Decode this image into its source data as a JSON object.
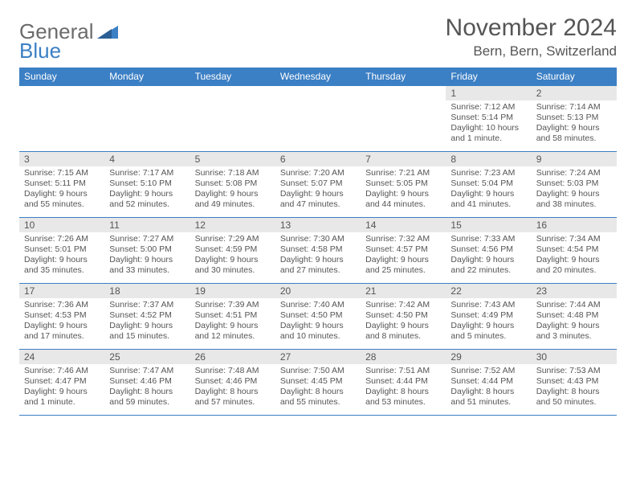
{
  "brand": {
    "part1": "General",
    "part2": "Blue"
  },
  "title": "November 2024",
  "location": "Bern, Bern, Switzerland",
  "colors": {
    "accent": "#3b7fc4",
    "header_bg": "#3b7fc4",
    "header_text": "#ffffff",
    "daynum_bg": "#e8e8e8",
    "text": "#555555",
    "border": "#3b7fc4",
    "background": "#ffffff"
  },
  "layout": {
    "type": "calendar",
    "columns": 7,
    "rows": 5,
    "weekday_fontsize": 12,
    "daynum_fontsize": 12,
    "body_fontsize": 10.5,
    "title_fontsize": 30,
    "location_fontsize": 17
  },
  "weekdays": [
    "Sunday",
    "Monday",
    "Tuesday",
    "Wednesday",
    "Thursday",
    "Friday",
    "Saturday"
  ],
  "grid": [
    [
      {
        "empty": true
      },
      {
        "empty": true
      },
      {
        "empty": true
      },
      {
        "empty": true
      },
      {
        "empty": true
      },
      {
        "num": "1",
        "sunrise": "Sunrise: 7:12 AM",
        "sunset": "Sunset: 5:14 PM",
        "day1": "Daylight: 10 hours",
        "day2": "and 1 minute."
      },
      {
        "num": "2",
        "sunrise": "Sunrise: 7:14 AM",
        "sunset": "Sunset: 5:13 PM",
        "day1": "Daylight: 9 hours",
        "day2": "and 58 minutes."
      }
    ],
    [
      {
        "num": "3",
        "sunrise": "Sunrise: 7:15 AM",
        "sunset": "Sunset: 5:11 PM",
        "day1": "Daylight: 9 hours",
        "day2": "and 55 minutes."
      },
      {
        "num": "4",
        "sunrise": "Sunrise: 7:17 AM",
        "sunset": "Sunset: 5:10 PM",
        "day1": "Daylight: 9 hours",
        "day2": "and 52 minutes."
      },
      {
        "num": "5",
        "sunrise": "Sunrise: 7:18 AM",
        "sunset": "Sunset: 5:08 PM",
        "day1": "Daylight: 9 hours",
        "day2": "and 49 minutes."
      },
      {
        "num": "6",
        "sunrise": "Sunrise: 7:20 AM",
        "sunset": "Sunset: 5:07 PM",
        "day1": "Daylight: 9 hours",
        "day2": "and 47 minutes."
      },
      {
        "num": "7",
        "sunrise": "Sunrise: 7:21 AM",
        "sunset": "Sunset: 5:05 PM",
        "day1": "Daylight: 9 hours",
        "day2": "and 44 minutes."
      },
      {
        "num": "8",
        "sunrise": "Sunrise: 7:23 AM",
        "sunset": "Sunset: 5:04 PM",
        "day1": "Daylight: 9 hours",
        "day2": "and 41 minutes."
      },
      {
        "num": "9",
        "sunrise": "Sunrise: 7:24 AM",
        "sunset": "Sunset: 5:03 PM",
        "day1": "Daylight: 9 hours",
        "day2": "and 38 minutes."
      }
    ],
    [
      {
        "num": "10",
        "sunrise": "Sunrise: 7:26 AM",
        "sunset": "Sunset: 5:01 PM",
        "day1": "Daylight: 9 hours",
        "day2": "and 35 minutes."
      },
      {
        "num": "11",
        "sunrise": "Sunrise: 7:27 AM",
        "sunset": "Sunset: 5:00 PM",
        "day1": "Daylight: 9 hours",
        "day2": "and 33 minutes."
      },
      {
        "num": "12",
        "sunrise": "Sunrise: 7:29 AM",
        "sunset": "Sunset: 4:59 PM",
        "day1": "Daylight: 9 hours",
        "day2": "and 30 minutes."
      },
      {
        "num": "13",
        "sunrise": "Sunrise: 7:30 AM",
        "sunset": "Sunset: 4:58 PM",
        "day1": "Daylight: 9 hours",
        "day2": "and 27 minutes."
      },
      {
        "num": "14",
        "sunrise": "Sunrise: 7:32 AM",
        "sunset": "Sunset: 4:57 PM",
        "day1": "Daylight: 9 hours",
        "day2": "and 25 minutes."
      },
      {
        "num": "15",
        "sunrise": "Sunrise: 7:33 AM",
        "sunset": "Sunset: 4:56 PM",
        "day1": "Daylight: 9 hours",
        "day2": "and 22 minutes."
      },
      {
        "num": "16",
        "sunrise": "Sunrise: 7:34 AM",
        "sunset": "Sunset: 4:54 PM",
        "day1": "Daylight: 9 hours",
        "day2": "and 20 minutes."
      }
    ],
    [
      {
        "num": "17",
        "sunrise": "Sunrise: 7:36 AM",
        "sunset": "Sunset: 4:53 PM",
        "day1": "Daylight: 9 hours",
        "day2": "and 17 minutes."
      },
      {
        "num": "18",
        "sunrise": "Sunrise: 7:37 AM",
        "sunset": "Sunset: 4:52 PM",
        "day1": "Daylight: 9 hours",
        "day2": "and 15 minutes."
      },
      {
        "num": "19",
        "sunrise": "Sunrise: 7:39 AM",
        "sunset": "Sunset: 4:51 PM",
        "day1": "Daylight: 9 hours",
        "day2": "and 12 minutes."
      },
      {
        "num": "20",
        "sunrise": "Sunrise: 7:40 AM",
        "sunset": "Sunset: 4:50 PM",
        "day1": "Daylight: 9 hours",
        "day2": "and 10 minutes."
      },
      {
        "num": "21",
        "sunrise": "Sunrise: 7:42 AM",
        "sunset": "Sunset: 4:50 PM",
        "day1": "Daylight: 9 hours",
        "day2": "and 8 minutes."
      },
      {
        "num": "22",
        "sunrise": "Sunrise: 7:43 AM",
        "sunset": "Sunset: 4:49 PM",
        "day1": "Daylight: 9 hours",
        "day2": "and 5 minutes."
      },
      {
        "num": "23",
        "sunrise": "Sunrise: 7:44 AM",
        "sunset": "Sunset: 4:48 PM",
        "day1": "Daylight: 9 hours",
        "day2": "and 3 minutes."
      }
    ],
    [
      {
        "num": "24",
        "sunrise": "Sunrise: 7:46 AM",
        "sunset": "Sunset: 4:47 PM",
        "day1": "Daylight: 9 hours",
        "day2": "and 1 minute."
      },
      {
        "num": "25",
        "sunrise": "Sunrise: 7:47 AM",
        "sunset": "Sunset: 4:46 PM",
        "day1": "Daylight: 8 hours",
        "day2": "and 59 minutes."
      },
      {
        "num": "26",
        "sunrise": "Sunrise: 7:48 AM",
        "sunset": "Sunset: 4:46 PM",
        "day1": "Daylight: 8 hours",
        "day2": "and 57 minutes."
      },
      {
        "num": "27",
        "sunrise": "Sunrise: 7:50 AM",
        "sunset": "Sunset: 4:45 PM",
        "day1": "Daylight: 8 hours",
        "day2": "and 55 minutes."
      },
      {
        "num": "28",
        "sunrise": "Sunrise: 7:51 AM",
        "sunset": "Sunset: 4:44 PM",
        "day1": "Daylight: 8 hours",
        "day2": "and 53 minutes."
      },
      {
        "num": "29",
        "sunrise": "Sunrise: 7:52 AM",
        "sunset": "Sunset: 4:44 PM",
        "day1": "Daylight: 8 hours",
        "day2": "and 51 minutes."
      },
      {
        "num": "30",
        "sunrise": "Sunrise: 7:53 AM",
        "sunset": "Sunset: 4:43 PM",
        "day1": "Daylight: 8 hours",
        "day2": "and 50 minutes."
      }
    ]
  ]
}
